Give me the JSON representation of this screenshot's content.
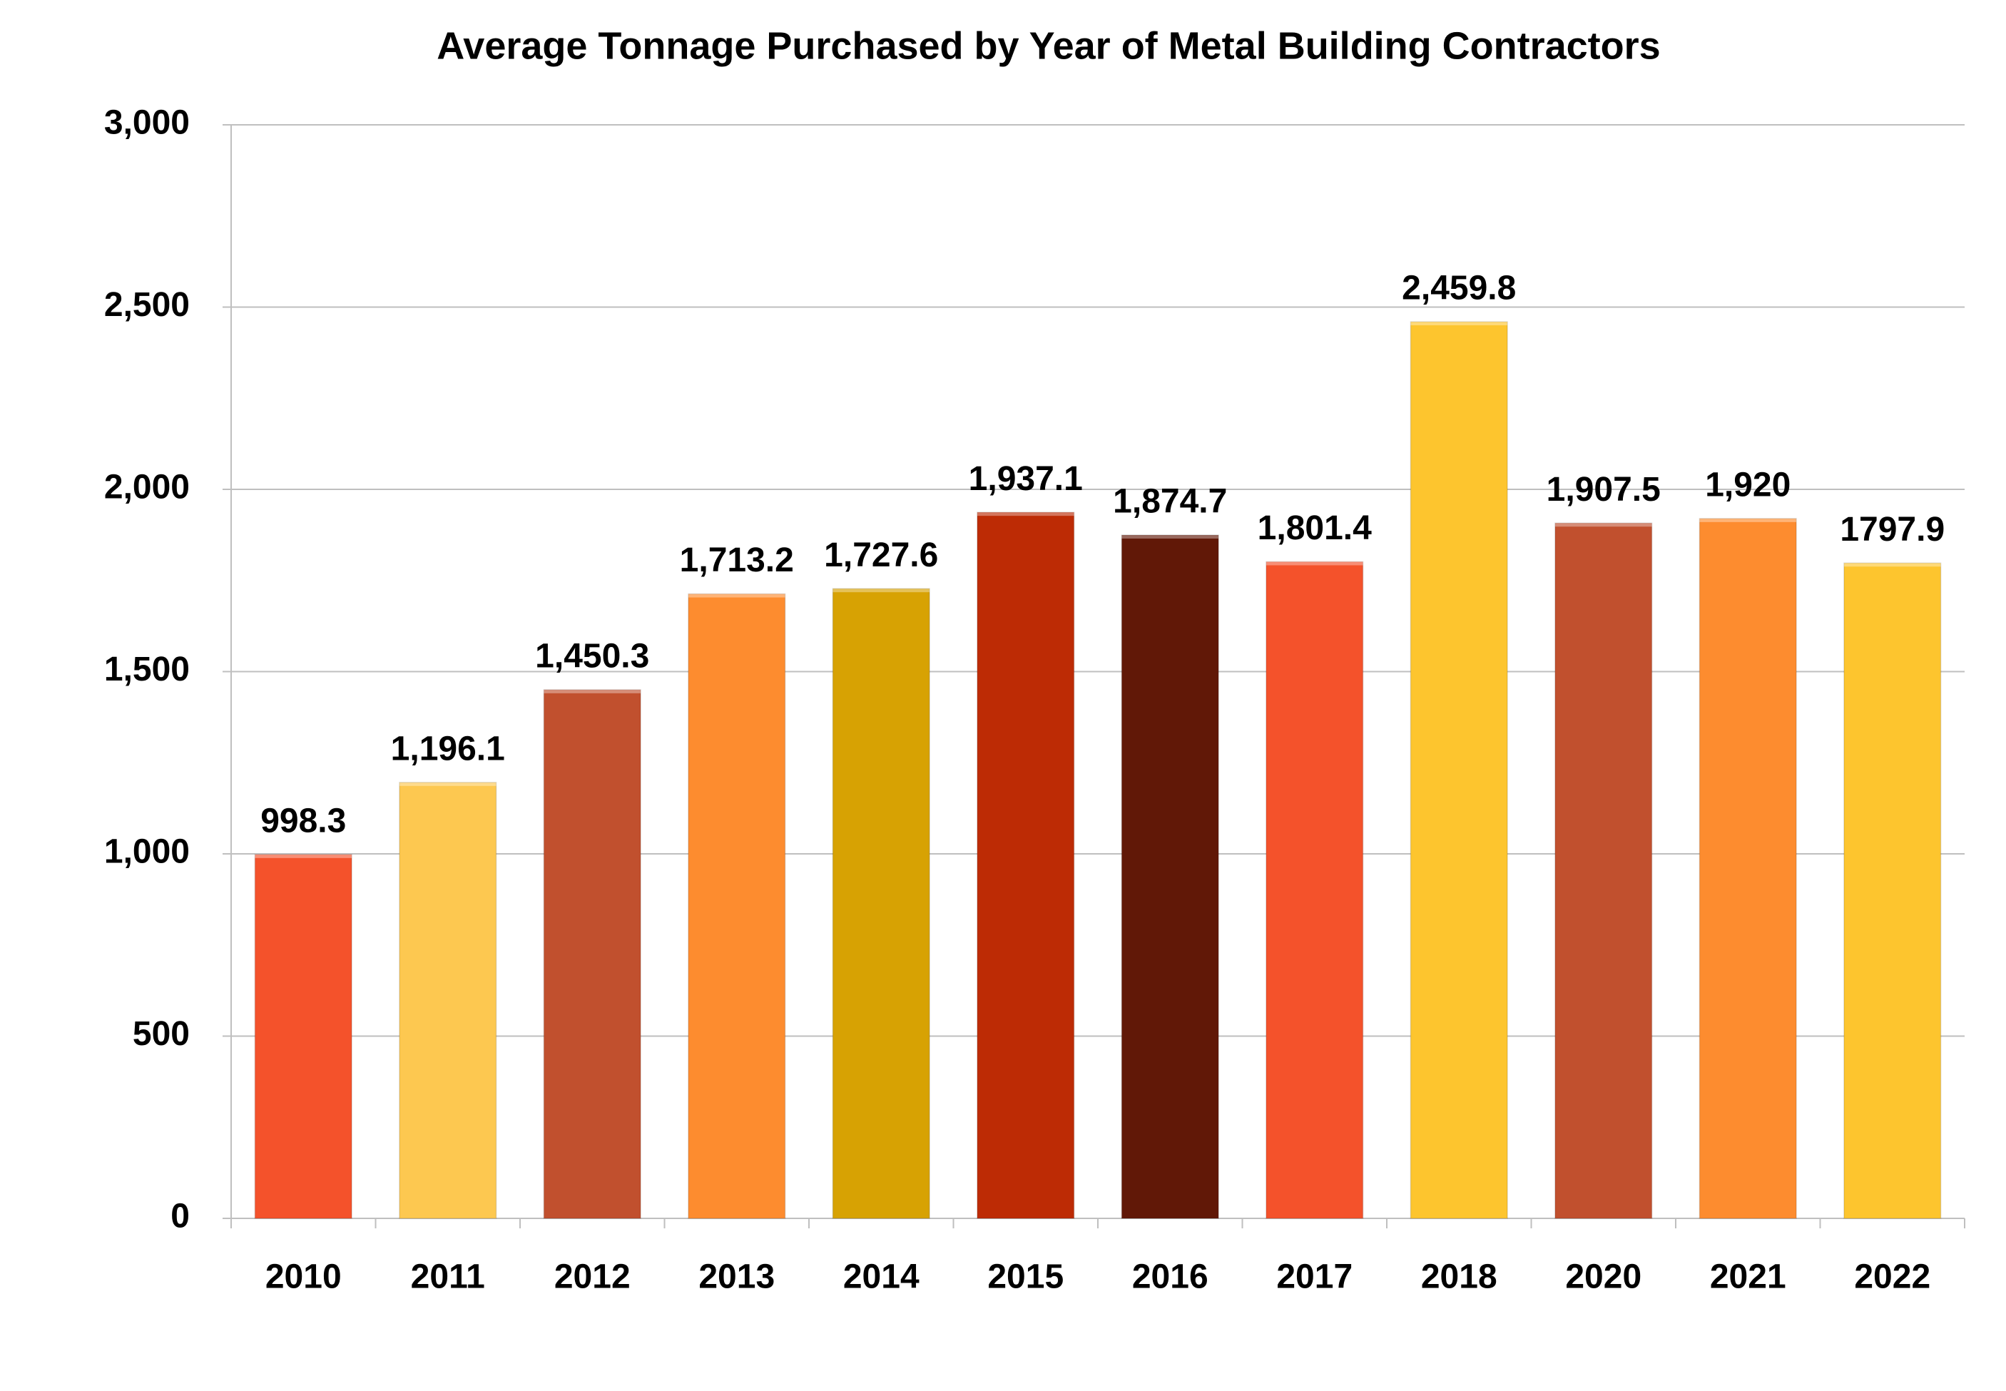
{
  "chart_data": {
    "type": "bar",
    "title": "Average Tonnage Purchased by Year of Metal Building Contractors",
    "categories": [
      "2010",
      "2011",
      "2012",
      "2013",
      "2014",
      "2015",
      "2016",
      "2017",
      "2018",
      "2020",
      "2021",
      "2022"
    ],
    "values": [
      998.3,
      1196.1,
      1450.3,
      1713.2,
      1727.6,
      1937.1,
      1874.7,
      1801.4,
      2459.8,
      1907.5,
      1920,
      1797.9
    ],
    "value_labels": [
      "998.3",
      "1,196.1",
      "1,450.3",
      "1,713.2",
      "1,727.6",
      "1,937.1",
      "1,874.7",
      "1,801.4",
      "2,459.8",
      "1,907.5",
      "1,920",
      "1797.9"
    ],
    "colors": [
      "#f4522b",
      "#fdc850",
      "#c1502e",
      "#fd8c2f",
      "#d7a203",
      "#bd2b05",
      "#611807",
      "#f4522b",
      "#fdc52e",
      "#c1502e",
      "#fd8c2f",
      "#fdc52e"
    ],
    "ylim": [
      0,
      3000
    ],
    "yticks": [
      0,
      500,
      {
        "value": 1000,
        "label": "1,000"
      },
      {
        "value": 1500,
        "label": "1,500"
      },
      {
        "value": 2000,
        "label": "2,000"
      },
      {
        "value": 2500,
        "label": "2,500"
      },
      {
        "value": 3000,
        "label": "3,000"
      }
    ],
    "grid": true
  }
}
